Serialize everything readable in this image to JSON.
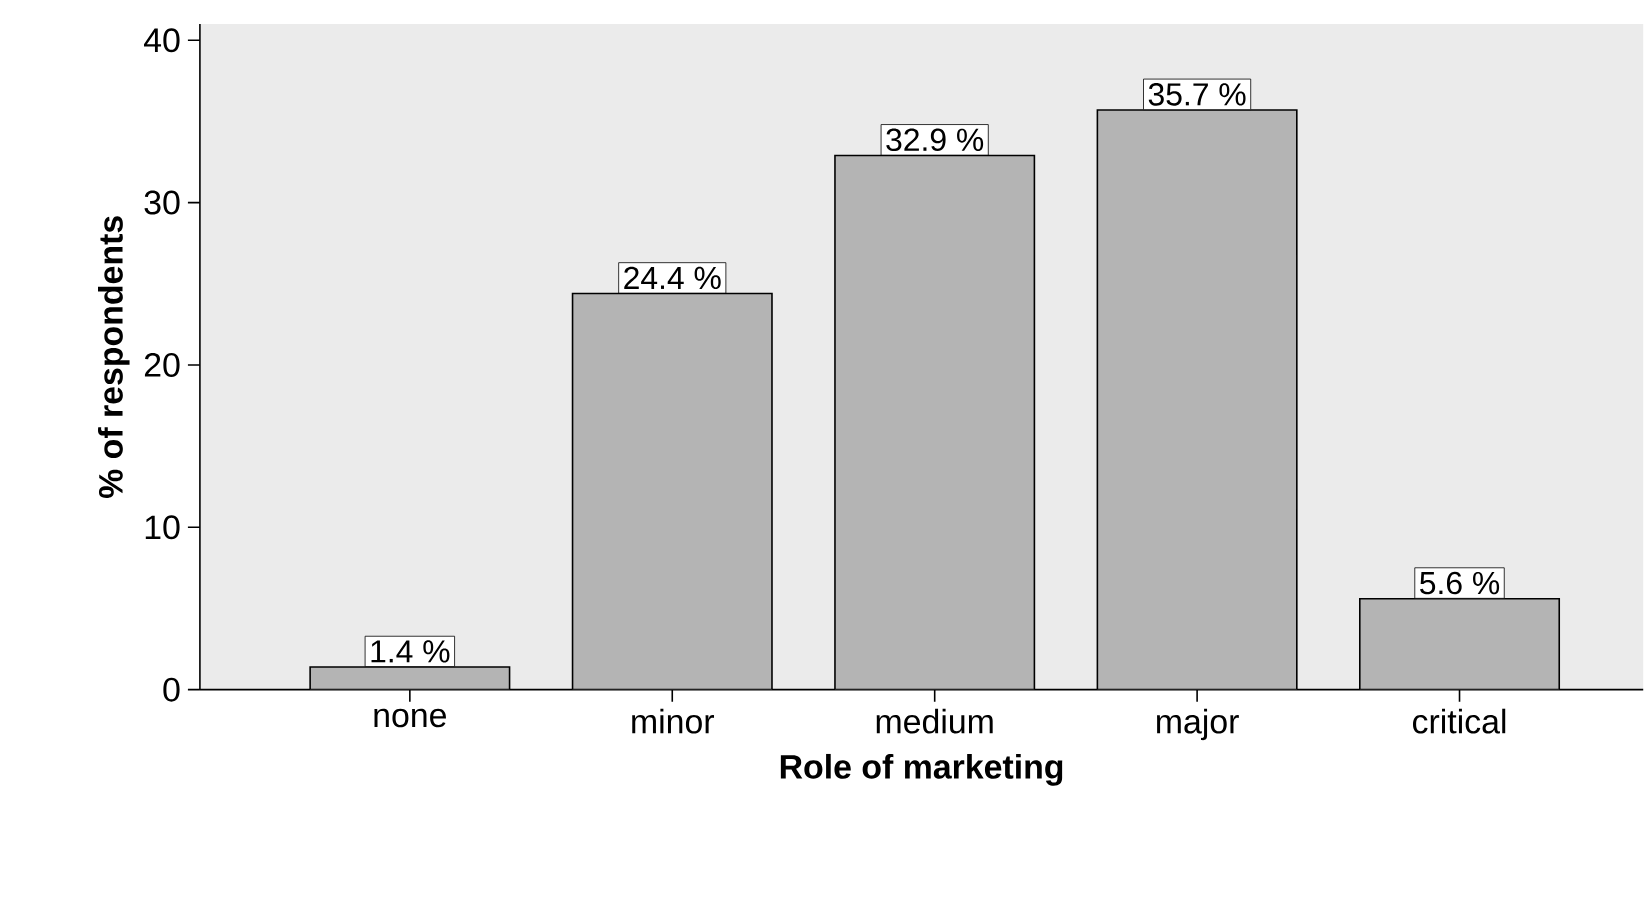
{
  "chart_data": {
    "type": "bar",
    "xlabel": "Role of marketing",
    "ylabel": "% of respondents",
    "categories": [
      "none",
      "minor",
      "medium",
      "major",
      "critical"
    ],
    "values": [
      1.4,
      24.4,
      32.9,
      35.7,
      5.6
    ],
    "value_labels": [
      "1.4 %",
      "24.4 %",
      "32.9 %",
      "35.7 %",
      "5.6 %"
    ],
    "color": "#b4b4b4",
    "ylim": [
      0,
      41
    ],
    "yticks": [
      0,
      10,
      20,
      30,
      40
    ],
    "grid": false
  }
}
